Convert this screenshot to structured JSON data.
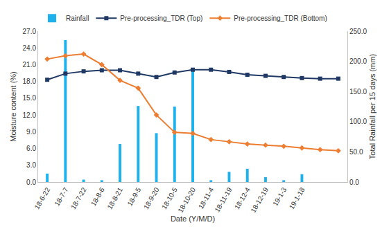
{
  "chart_data": {
    "type": "bar",
    "categories": [
      "18-6-22",
      "18-7-7",
      "18-7-22",
      "18-8-6",
      "18-8-21",
      "18-9-5",
      "18-9-20",
      "18-10-5",
      "18-10-20",
      "18-11-4",
      "18-11-19",
      "18-12-4",
      "18-12-19",
      "19-1-3",
      "19-1-18",
      null,
      null
    ],
    "x_label": "Date (Y/M/D)",
    "y_label": "Moisture content (%)",
    "y2_label": "Total Rainfall per 15 days (mm)",
    "ylim": [
      0,
      27
    ],
    "yticks": [
      {
        "value": 0,
        "label": "0.0"
      },
      {
        "value": 3,
        "label": "3.0"
      },
      {
        "value": 6,
        "label": "6.0"
      },
      {
        "value": 9,
        "label": "9.0"
      },
      {
        "value": 12,
        "label": "12.0"
      },
      {
        "value": 15,
        "label": "15.0"
      },
      {
        "value": 18,
        "label": "18.0"
      },
      {
        "value": 21,
        "label": "21.0"
      },
      {
        "value": 24,
        "label": "24.0"
      },
      {
        "value": 27,
        "label": "27.0"
      }
    ],
    "y2lim": [
      0,
      250
    ],
    "y2ticks": [
      {
        "value": 0,
        "label": "0.0"
      },
      {
        "value": 50,
        "label": "50.0"
      },
      {
        "value": 100,
        "label": "100.0"
      },
      {
        "value": 150,
        "label": "150.0"
      },
      {
        "value": 200,
        "label": "200.0"
      },
      {
        "value": 250,
        "label": "250.0"
      }
    ],
    "grid": false,
    "legend": "top",
    "series": [
      {
        "name": "Rainfall",
        "type": "bar",
        "axis": "y2",
        "color": "#1fb1ec",
        "values": [
          14,
          235,
          4,
          3,
          63,
          126,
          81,
          125,
          185,
          3,
          17,
          22,
          8,
          3,
          13,
          null,
          null
        ]
      },
      {
        "name": "Pre-processing_TDR (Top)",
        "type": "line",
        "color": "#1f3864",
        "marker": "square",
        "values": [
          18.3,
          19.4,
          19.8,
          20.0,
          20.0,
          19.4,
          18.8,
          19.6,
          20.1,
          20.1,
          19.7,
          19.2,
          19.0,
          18.8,
          18.6,
          18.5,
          18.5
        ]
      },
      {
        "name": "Pre-processing_TDR (Bottom)",
        "type": "line",
        "color": "#ed7d31",
        "marker": "diamond",
        "values": [
          22.0,
          22.6,
          22.9,
          21.0,
          18.2,
          16.8,
          12.0,
          8.9,
          8.7,
          7.6,
          7.2,
          6.8,
          6.6,
          6.4,
          6.1,
          5.8,
          5.6
        ]
      }
    ]
  }
}
